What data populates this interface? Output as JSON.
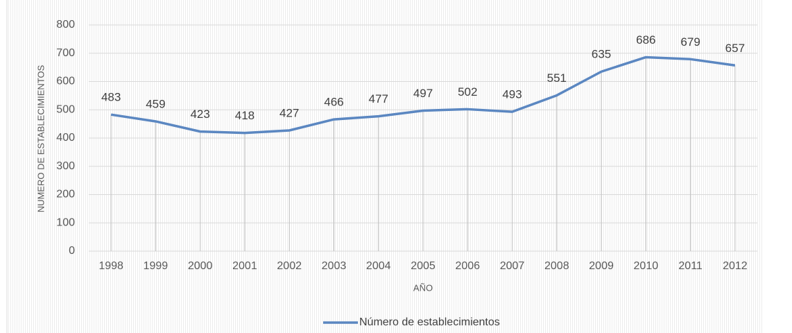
{
  "chart_data": {
    "type": "line",
    "y_axis_label": "NUMERO  DE ESTABLECIMIENTOS",
    "x_axis_label": "AÑO",
    "categories": [
      "1998",
      "1999",
      "2000",
      "2001",
      "2002",
      "2003",
      "2004",
      "2005",
      "2006",
      "2007",
      "2008",
      "2009",
      "2010",
      "2011",
      "2012"
    ],
    "series": [
      {
        "name": "Número de establecimientos",
        "color": "#5b87c1",
        "values": [
          483,
          459,
          423,
          418,
          427,
          466,
          477,
          497,
          502,
          493,
          551,
          635,
          686,
          679,
          657
        ]
      }
    ],
    "ylim": [
      0,
      800
    ],
    "yticks": [
      0,
      100,
      200,
      300,
      400,
      500,
      600,
      700,
      800
    ],
    "grid": true,
    "legend": "bottom"
  }
}
